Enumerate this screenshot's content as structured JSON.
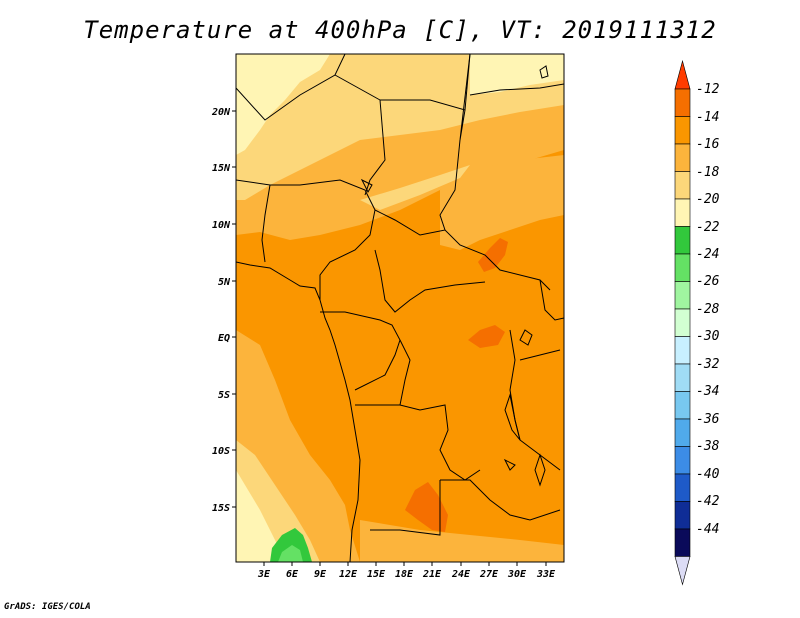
{
  "title": "Temperature at 400hPa [C], VT: 2019111312",
  "credit": "GrADS: IGES/COLA",
  "map": {
    "lat_labels": [
      "20N",
      "15N",
      "10N",
      "5N",
      "EQ",
      "5S",
      "10S",
      "15S"
    ],
    "lon_labels": [
      "3E",
      "6E",
      "9E",
      "12E",
      "15E",
      "18E",
      "21E",
      "24E",
      "27E",
      "30E",
      "33E"
    ]
  },
  "colorbar": {
    "labels": [
      "-12",
      "-14",
      "-16",
      "-18",
      "-20",
      "-22",
      "-24",
      "-26",
      "-28",
      "-30",
      "-32",
      "-34",
      "-36",
      "-38",
      "-40",
      "-42",
      "-44"
    ],
    "colors": [
      "#ff3c00",
      "#f56f00",
      "#fa9600",
      "#fcb43c",
      "#fcd77a",
      "#fff5b4",
      "#32c83c",
      "#64e164",
      "#a0f5a0",
      "#d2ffd2",
      "#c8f0ff",
      "#a0dcf5",
      "#78c8f0",
      "#50aaeb",
      "#3c8ce6",
      "#1e5ac8",
      "#0f2d96",
      "#0a0a5a",
      "#dcdcf5"
    ]
  }
}
